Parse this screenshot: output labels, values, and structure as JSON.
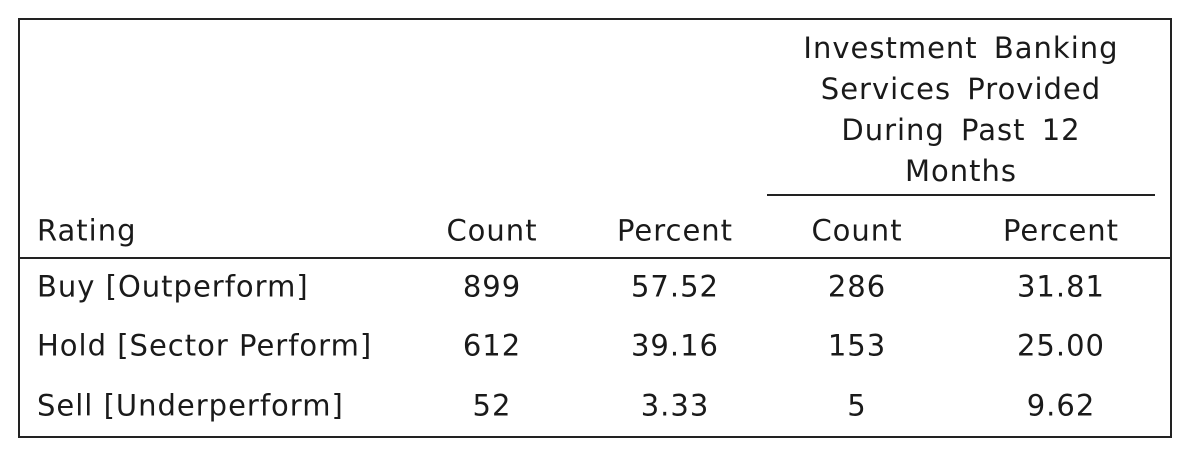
{
  "table": {
    "group_header": "Investment Banking Services Provided During Past 12 Months",
    "columns": [
      "Rating",
      "Count",
      "Percent",
      "Count",
      "Percent"
    ],
    "rows": [
      [
        "Buy [Outperform]",
        "899",
        "57.52",
        "286",
        "31.81"
      ],
      [
        "Hold [Sector Perform]",
        "612",
        "39.16",
        "153",
        "25.00"
      ],
      [
        "Sell [Underperform]",
        "52",
        "3.33",
        "5",
        "9.62"
      ]
    ]
  }
}
